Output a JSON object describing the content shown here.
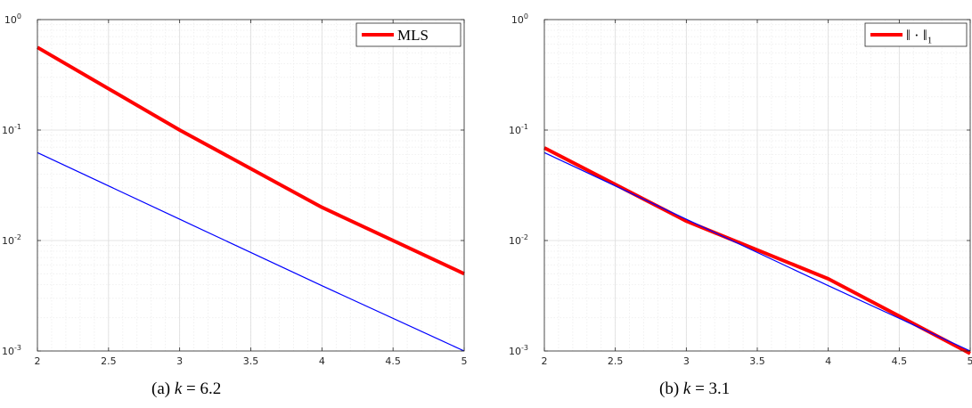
{
  "chart_data": [
    {
      "type": "line",
      "caption": "(a) k = 6.2",
      "caption_prefix": "(a) ",
      "caption_var": "k",
      "caption_rest": " = 6.2",
      "xlim": [
        2,
        5
      ],
      "ylim": [
        0.001,
        1
      ],
      "yscale": "log",
      "x_ticks": [
        "2",
        "2.5",
        "3",
        "3.5",
        "4",
        "4.5",
        "5"
      ],
      "y_ticks": [
        {
          "base": "10",
          "exp": "0"
        },
        {
          "base": "10",
          "exp": "-1"
        },
        {
          "base": "10",
          "exp": "-2"
        },
        {
          "base": "10",
          "exp": "-3"
        }
      ],
      "grid": true,
      "legend_placement": "top-right",
      "series": [
        {
          "name": "MLS",
          "color": "#ff0000",
          "width": "thick",
          "x": [
            2,
            3,
            4,
            5
          ],
          "y": [
            0.56,
            0.1,
            0.02,
            0.005
          ]
        },
        {
          "color": "#0000ff",
          "width": "thin",
          "x": [
            2,
            3,
            4,
            5
          ],
          "y": [
            0.0625,
            0.0156,
            0.0039,
            0.001
          ]
        }
      ]
    },
    {
      "type": "line",
      "caption": "(b) k = 3.1",
      "caption_prefix": "(b) ",
      "caption_var": "k",
      "caption_rest": " = 3.1",
      "xlim": [
        2,
        5
      ],
      "ylim": [
        0.001,
        1
      ],
      "yscale": "log",
      "x_ticks": [
        "2",
        "2.5",
        "3",
        "3.5",
        "4",
        "4.5",
        "5"
      ],
      "y_ticks": [
        {
          "base": "10",
          "exp": "0"
        },
        {
          "base": "10",
          "exp": "-1"
        },
        {
          "base": "10",
          "exp": "-2"
        },
        {
          "base": "10",
          "exp": "-3"
        }
      ],
      "grid": true,
      "legend_placement": "top-right",
      "series": [
        {
          "name": "‖ · ‖₁",
          "color": "#ff0000",
          "width": "thick",
          "x": [
            2,
            3,
            4,
            5
          ],
          "y": [
            0.069,
            0.015,
            0.0045,
            0.00095
          ]
        },
        {
          "color": "#0000ff",
          "width": "thin",
          "x": [
            2,
            3,
            4,
            5
          ],
          "y": [
            0.0625,
            0.0156,
            0.0039,
            0.001
          ]
        }
      ]
    }
  ]
}
